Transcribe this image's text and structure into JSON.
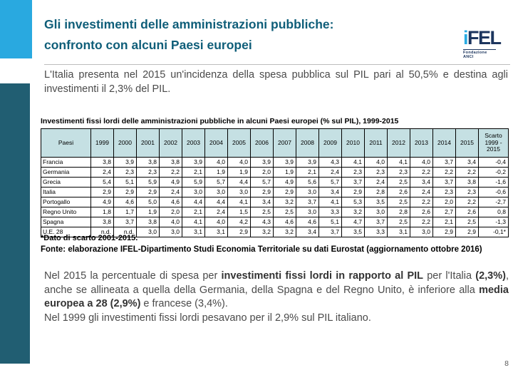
{
  "slide": {
    "title_line1": "Gli investimenti delle amministrazioni pubbliche:",
    "title_line2": "confronto con alcuni Paesi europei",
    "page_number": "8"
  },
  "logo": {
    "text_i": "i",
    "text_fel": "FEL",
    "subtitle": "Fondazione ANCI"
  },
  "intro": "L'Italia presenta nel 2015 un'incidenza della spesa pubblica sul PIL pari al 50,5% e destina agli investimenti il 2,3% del PIL.",
  "table": {
    "title": "Investimenti fissi lordi delle amministrazioni pubbliche in alcuni Paesi europei (% sul PIL), 1999-2015",
    "header": [
      "Paesi",
      "1999",
      "2000",
      "2001",
      "2002",
      "2003",
      "2004",
      "2005",
      "2006",
      "2007",
      "2008",
      "2009",
      "2010",
      "2011",
      "2012",
      "2013",
      "2014",
      "2015",
      "Scarto 1999 - 2015"
    ],
    "rows": [
      [
        "Francia",
        "3,8",
        "3,9",
        "3,8",
        "3,8",
        "3,9",
        "4,0",
        "4,0",
        "3,9",
        "3,9",
        "3,9",
        "4,3",
        "4,1",
        "4,0",
        "4,1",
        "4,0",
        "3,7",
        "3,4",
        "-0,4"
      ],
      [
        "Germania",
        "2,4",
        "2,3",
        "2,3",
        "2,2",
        "2,1",
        "1,9",
        "1,9",
        "2,0",
        "1,9",
        "2,1",
        "2,4",
        "2,3",
        "2,3",
        "2,3",
        "2,2",
        "2,2",
        "2,2",
        "-0,2"
      ],
      [
        "Grecia",
        "5,4",
        "5,1",
        "5,9",
        "4,9",
        "5,9",
        "5,7",
        "4,4",
        "5,7",
        "4,9",
        "5,6",
        "5,7",
        "3,7",
        "2,4",
        "2,5",
        "3,4",
        "3,7",
        "3,8",
        "-1,6"
      ],
      [
        "Italia",
        "2,9",
        "2,9",
        "2,9",
        "2,4",
        "3,0",
        "3,0",
        "3,0",
        "2,9",
        "2,9",
        "3,0",
        "3,4",
        "2,9",
        "2,8",
        "2,6",
        "2,4",
        "2,3",
        "2,3",
        "-0,6"
      ],
      [
        "Portogallo",
        "4,9",
        "4,6",
        "5,0",
        "4,6",
        "4,4",
        "4,4",
        "4,1",
        "3,4",
        "3,2",
        "3,7",
        "4,1",
        "5,3",
        "3,5",
        "2,5",
        "2,2",
        "2,0",
        "2,2",
        "-2,7"
      ],
      [
        "Regno Unito",
        "1,8",
        "1,7",
        "1,9",
        "2,0",
        "2,1",
        "2,4",
        "1,5",
        "2,5",
        "2,5",
        "3,0",
        "3,3",
        "3,2",
        "3,0",
        "2,8",
        "2,6",
        "2,7",
        "2,6",
        "0,8"
      ],
      [
        "Spagna",
        "3,8",
        "3,7",
        "3,8",
        "4,0",
        "4,1",
        "4,0",
        "4,2",
        "4,3",
        "4,6",
        "4,6",
        "5,1",
        "4,7",
        "3,7",
        "2,5",
        "2,2",
        "2,1",
        "2,5",
        "-1,3"
      ],
      [
        "U.E. 28",
        "n.d.",
        "n.d.",
        "3,0",
        "3,0",
        "3,1",
        "3,1",
        "2,9",
        "3,2",
        "3,2",
        "3,4",
        "3,7",
        "3,5",
        "3,3",
        "3,1",
        "3,0",
        "2,9",
        "2,9",
        "-0,1*"
      ]
    ],
    "note1": "*Dato di scarto 2001-2015.",
    "note2": "Fonte: elaborazione IFEL-Dipartimento Studi Economia Territoriale su dati Eurostat (aggiornamento ottobre 2016)"
  },
  "body": {
    "segments": [
      {
        "text": "Nel 2015 la percentuale di spesa per ",
        "bold": false
      },
      {
        "text": "investimenti fissi lordi in rapporto al PIL",
        "bold": true
      },
      {
        "text": " per l'Italia ",
        "bold": false
      },
      {
        "text": "(2,3%)",
        "bold": true
      },
      {
        "text": ", anche se allineata a quella della Germania, della Spagna e del Regno Unito, è inferiore alla ",
        "bold": false
      },
      {
        "text": "media europea a 28 (2,9%)",
        "bold": true
      },
      {
        "text": " e francese (3,4%).",
        "bold": false
      }
    ],
    "line2": "Nel 1999 gli investimenti fissi lordi pesavano per il 2,9% sul PIL italiano."
  },
  "colors": {
    "accent_light_blue": "#29A9E0",
    "accent_teal": "#215E72",
    "title_color": "#0F5E79",
    "table_header_bg": "#C5E0E3",
    "logo_navy": "#1C355E",
    "logo_light_blue": "#29ABE2"
  }
}
